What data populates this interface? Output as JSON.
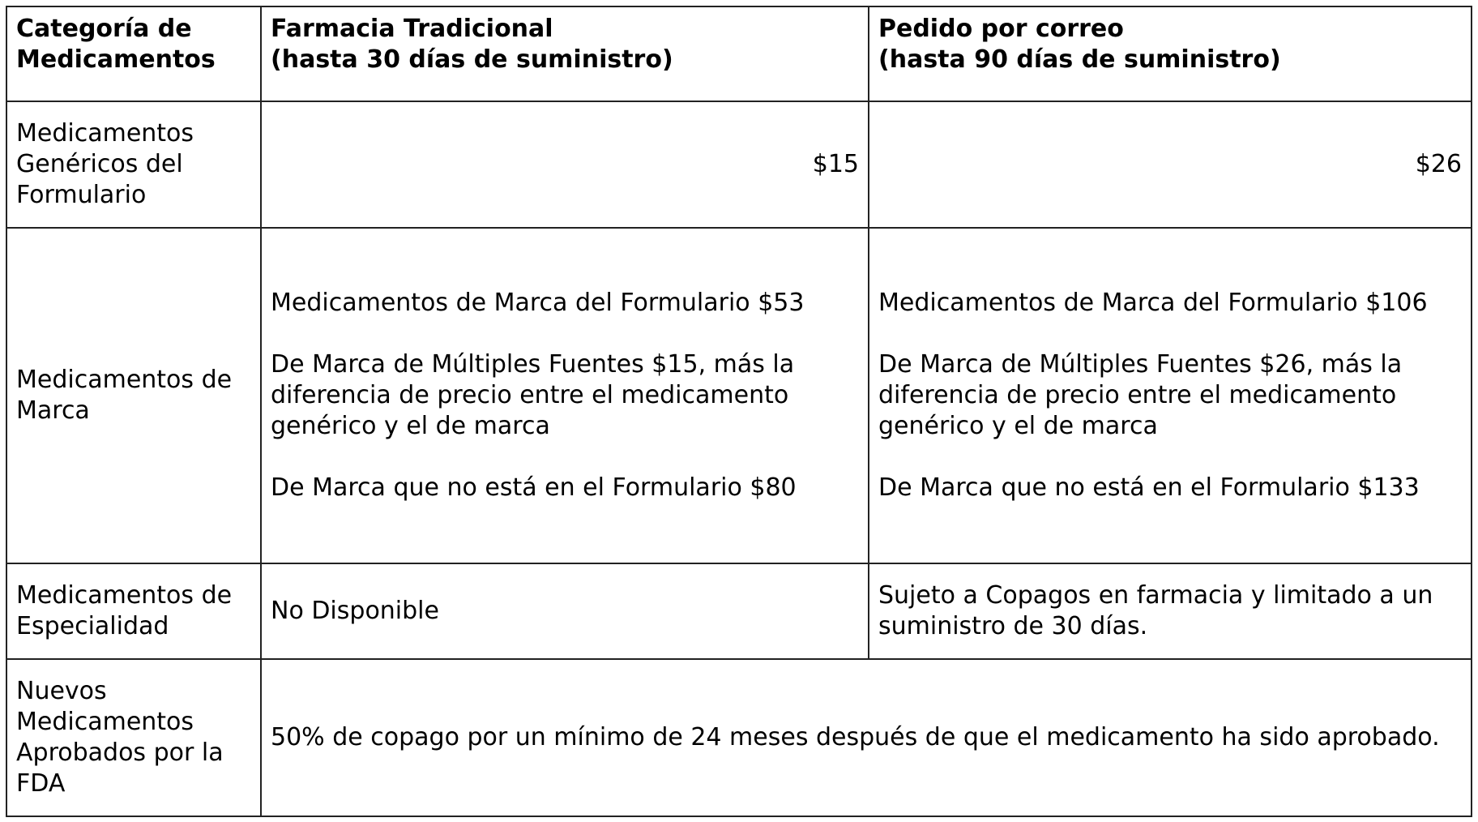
{
  "headers": [
    {
      "line1": "Categoría de",
      "line2": "Medicamentos"
    },
    {
      "line1": "Farmacia Tradicional",
      "line2": "(hasta 30 días de suministro)"
    },
    {
      "line1": "Pedido por correo",
      "line2": "(hasta 90 días de suministro)"
    }
  ],
  "rows": [
    {
      "category": "Medicamentos Genéricos del Formulario",
      "retail": "$15",
      "mail": "$26"
    },
    {
      "category": "Medicamentos de Marca",
      "retail": [
        "Medicamentos de Marca del Formulario $53",
        "De Marca de Múltiples Fuentes $15, más la diferencia de precio entre el medicamento genérico y el de marca",
        "De Marca que no está en el Formulario $80"
      ],
      "mail": [
        "Medicamentos de Marca del Formulario $106",
        "De Marca de Múltiples Fuentes $26, más la diferencia de precio entre el medicamento genérico y el de marca",
        "De Marca que no está en el Formulario $133"
      ]
    },
    {
      "category": "Medicamentos de Especialidad",
      "retail": "No Disponible",
      "mail": "Sujeto a Copagos en farmacia y limitado a un suministro de 30 días."
    },
    {
      "category": "Nuevos Medicamentos Aprobados por la FDA",
      "combined": "50% de copago por un mínimo de 24 meses después de que el medicamento ha sido aprobado."
    }
  ]
}
